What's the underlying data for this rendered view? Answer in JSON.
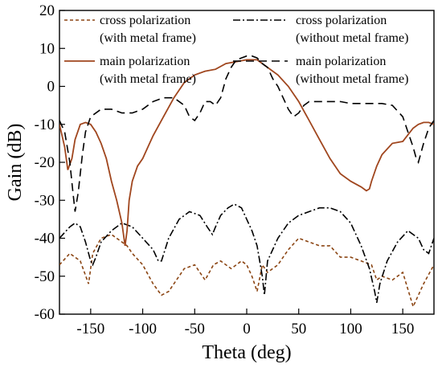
{
  "chart_data": {
    "type": "line",
    "xlabel": "Theta (deg)",
    "ylabel": "Gain (dB)",
    "xlim": [
      -180,
      180
    ],
    "ylim": [
      -60,
      20
    ],
    "xticks": [
      -150,
      -100,
      -50,
      0,
      50,
      100,
      150
    ],
    "yticks": [
      20,
      10,
      0,
      -10,
      -20,
      -30,
      -40,
      -50,
      -60
    ],
    "grid": false,
    "legend_position": "top",
    "series": [
      {
        "name_lines": [
          "cross polarization",
          "(with metal frame)"
        ],
        "color": "#8B4513",
        "dash": "short-dash",
        "x": [
          -180,
          -170,
          -160,
          -152,
          -148,
          -140,
          -130,
          -120,
          -115,
          -110,
          -100,
          -90,
          -82,
          -75,
          -60,
          -50,
          -40,
          -32,
          -25,
          -15,
          -5,
          0,
          5,
          10,
          15,
          20,
          30,
          40,
          50,
          60,
          70,
          80,
          90,
          100,
          110,
          120,
          125,
          130,
          140,
          150,
          160,
          170,
          180
        ],
        "y": [
          -47,
          -44,
          -46,
          -52,
          -44,
          -40,
          -39,
          -41,
          -42,
          -44,
          -47,
          -52,
          -55,
          -54,
          -48,
          -47,
          -51,
          -47,
          -46,
          -48,
          -46,
          -47,
          -50,
          -54,
          -47,
          -49,
          -47,
          -43,
          -40,
          -41,
          -42,
          -42,
          -45,
          -45,
          -46,
          -47,
          -51,
          -50,
          -51,
          -49,
          -58,
          -52,
          -47
        ]
      },
      {
        "name_lines": [
          "cross polarization",
          "(without metal frame)"
        ],
        "color": "#000000",
        "dash": "dash-dot",
        "x": [
          -180,
          -170,
          -165,
          -160,
          -155,
          -150,
          -148,
          -145,
          -140,
          -130,
          -120,
          -110,
          -100,
          -90,
          -85,
          -82,
          -75,
          -65,
          -55,
          -45,
          -38,
          -33,
          -30,
          -25,
          -18,
          -12,
          -5,
          0,
          5,
          10,
          15,
          17,
          20,
          30,
          40,
          50,
          60,
          70,
          80,
          90,
          100,
          110,
          118,
          123,
          125,
          128,
          135,
          145,
          155,
          165,
          170,
          175,
          180
        ],
        "y": [
          -40,
          -37,
          -36,
          -37,
          -41,
          -46,
          -47,
          -45,
          -41,
          -38,
          -36,
          -37,
          -40,
          -43,
          -46,
          -46,
          -40,
          -35,
          -33,
          -34,
          -37,
          -39,
          -37,
          -34,
          -32,
          -31,
          -32,
          -35,
          -38,
          -42,
          -50,
          -55,
          -46,
          -40,
          -36,
          -34,
          -33,
          -32,
          -32,
          -33,
          -36,
          -42,
          -48,
          -54,
          -57,
          -52,
          -46,
          -41,
          -38,
          -40,
          -43,
          -44,
          -40
        ]
      },
      {
        "name_lines": [
          "main polarization",
          "(with metal frame)"
        ],
        "color": "#A0461E",
        "dash": "solid",
        "x": [
          -180,
          -175,
          -172,
          -168,
          -165,
          -160,
          -155,
          -150,
          -145,
          -140,
          -135,
          -130,
          -125,
          -120,
          -117,
          -115,
          -113,
          -110,
          -105,
          -100,
          -95,
          -90,
          -80,
          -70,
          -60,
          -50,
          -40,
          -30,
          -20,
          -10,
          0,
          10,
          20,
          30,
          40,
          50,
          60,
          70,
          80,
          90,
          100,
          110,
          115,
          118,
          120,
          125,
          130,
          140,
          150,
          160,
          165,
          170,
          175,
          180
        ],
        "y": [
          -10,
          -16,
          -22,
          -19,
          -14,
          -10,
          -9.5,
          -10,
          -12,
          -15,
          -19,
          -25,
          -30,
          -36,
          -42,
          -38,
          -30,
          -25,
          -21,
          -19,
          -16,
          -13,
          -8,
          -3,
          1,
          3,
          4,
          4.5,
          6,
          6.5,
          7,
          7,
          5,
          3,
          0,
          -4,
          -9,
          -14,
          -19,
          -23,
          -25,
          -26.5,
          -27.5,
          -27,
          -25,
          -21,
          -18,
          -15,
          -14.5,
          -11,
          -10,
          -9.5,
          -9.5,
          -10
        ]
      },
      {
        "name_lines": [
          "main polarization",
          "(without metal frame)"
        ],
        "color": "#000000",
        "dash": "long-dash",
        "x": [
          -180,
          -175,
          -170,
          -167,
          -165,
          -162,
          -158,
          -155,
          -150,
          -140,
          -130,
          -120,
          -110,
          -100,
          -90,
          -80,
          -75,
          -70,
          -60,
          -55,
          -50,
          -45,
          -40,
          -35,
          -30,
          -25,
          -20,
          -15,
          -10,
          -5,
          0,
          5,
          10,
          15,
          20,
          25,
          30,
          35,
          40,
          45,
          50,
          55,
          60,
          70,
          80,
          90,
          100,
          110,
          120,
          130,
          140,
          150,
          155,
          160,
          163,
          165,
          170,
          175,
          180
        ],
        "y": [
          -9,
          -12,
          -20,
          -28,
          -33,
          -28,
          -18,
          -12,
          -8,
          -6,
          -6,
          -7,
          -7,
          -6,
          -4,
          -3,
          -3,
          -3,
          -5,
          -8,
          -9,
          -7,
          -4,
          -4,
          -5,
          -3,
          2,
          5,
          7,
          7.5,
          8,
          8,
          7.5,
          6,
          5,
          2,
          0,
          -3,
          -6,
          -8,
          -7,
          -5,
          -4,
          -4,
          -4,
          -4,
          -4.5,
          -4.5,
          -4.5,
          -4.5,
          -5,
          -8,
          -12,
          -16,
          -19,
          -20,
          -15,
          -11,
          -9
        ]
      }
    ]
  }
}
